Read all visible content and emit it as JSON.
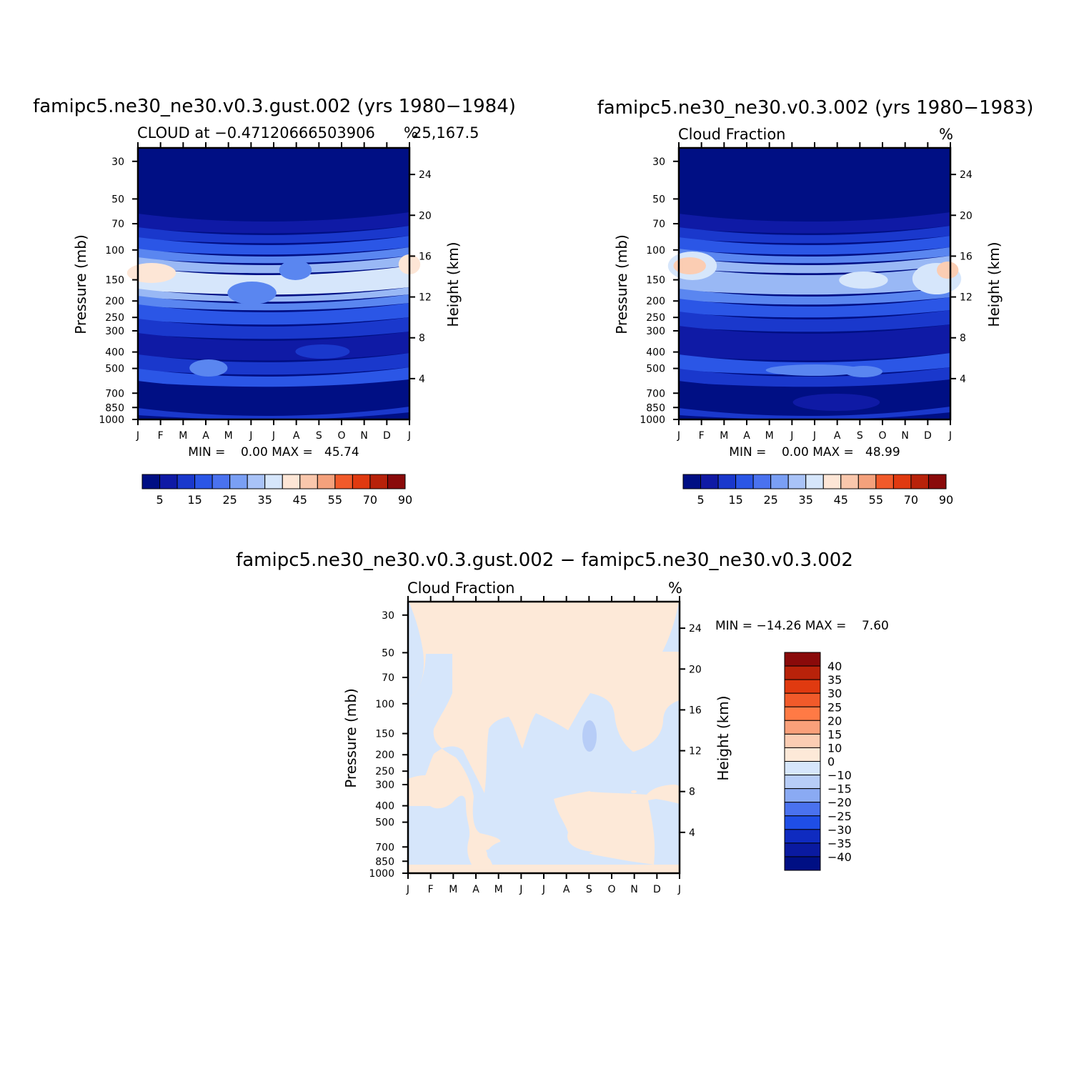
{
  "chart_data": [
    {
      "type": "contour",
      "title": "famipc5.ne30_ne30.v0.3.gust.002 (yrs 1980−1984)",
      "subtitle_left": "CLOUD at −0.47120666503906",
      "subtitle_right_units": "%",
      "subtitle_suffix": "25,167.5",
      "ylabel_left": "Pressure (mb)",
      "ylabel_right": "Height (km)",
      "x_ticks": [
        "J",
        "F",
        "M",
        "A",
        "M",
        "J",
        "J",
        "A",
        "S",
        "O",
        "N",
        "D",
        "J"
      ],
      "pressure_ticks": [
        30,
        50,
        70,
        100,
        150,
        200,
        250,
        300,
        400,
        500,
        700,
        850,
        1000
      ],
      "height_ticks": [
        24,
        20,
        16,
        12,
        8,
        4
      ],
      "stats": {
        "label": "MIN =    0.00 MAX =   45.74",
        "min": 0.0,
        "max": 45.74
      },
      "bands": [
        {
          "top": 303,
          "bottom": 322,
          "color": "#0f1aa5"
        },
        {
          "top": 322,
          "bottom": 336,
          "color": "#1a38cc"
        },
        {
          "top": 336,
          "bottom": 352,
          "color": "#2b56e6"
        },
        {
          "top": 352,
          "bottom": 364,
          "color": "#5a86f0"
        },
        {
          "top": 364,
          "bottom": 378,
          "color": "#99b8f5"
        },
        {
          "top": 378,
          "bottom": 408,
          "color": "#d6e6fb"
        },
        {
          "top": 408,
          "bottom": 418,
          "color": "#99b8f5"
        },
        {
          "top": 418,
          "bottom": 430,
          "color": "#5a86f0"
        },
        {
          "top": 430,
          "bottom": 450,
          "color": "#2b56e6"
        },
        {
          "top": 450,
          "bottom": 470,
          "color": "#1a38cc"
        },
        {
          "top": 470,
          "bottom": 500,
          "color": "#0f1aa5"
        },
        {
          "top": 500,
          "bottom": 520,
          "color": "#1a38cc"
        },
        {
          "top": 520,
          "bottom": 537,
          "color": "#2b56e6"
        },
        {
          "top": 537,
          "bottom": 575,
          "color": "#000f84"
        },
        {
          "top": 575,
          "bottom": 583,
          "color": "#1a38cc"
        }
      ],
      "blobs": [
        {
          "cx": 0.05,
          "cy": 382,
          "rx": 0.09,
          "ry": 14,
          "color": "#fde6d6"
        },
        {
          "cx": 1.0,
          "cy": 370,
          "rx": 0.04,
          "ry": 14,
          "color": "#fde6d6"
        },
        {
          "cx": 0.58,
          "cy": 378,
          "rx": 0.06,
          "ry": 14,
          "color": "#5a86f0"
        },
        {
          "cx": 0.42,
          "cy": 410,
          "rx": 0.09,
          "ry": 16,
          "color": "#5a86f0"
        },
        {
          "cx": 0.26,
          "cy": 515,
          "rx": 0.07,
          "ry": 12,
          "color": "#5a86f0"
        },
        {
          "cx": 0.68,
          "cy": 492,
          "rx": 0.1,
          "ry": 10,
          "color": "#1a38cc"
        }
      ],
      "colorbar": {
        "labels": [
          "5",
          "15",
          "25",
          "35",
          "45",
          "55",
          "70",
          "90"
        ],
        "colors": [
          "#000f84",
          "#0f1aa5",
          "#1a38cc",
          "#2b56e6",
          "#4a72ef",
          "#7a9ff4",
          "#a9c3f7",
          "#d6e6fb",
          "#fde6d6",
          "#f9c7ac",
          "#f4a17c",
          "#f15a2a",
          "#e03a10",
          "#b8220a",
          "#8a0a0a"
        ]
      }
    },
    {
      "type": "contour",
      "title": "famipc5.ne30_ne30.v0.3.002 (yrs 1980−1983)",
      "subtitle_left": "Cloud Fraction",
      "subtitle_right_units": "%",
      "ylabel_left": "Pressure (mb)",
      "ylabel_right": "Height (km)",
      "x_ticks": [
        "J",
        "F",
        "M",
        "A",
        "M",
        "J",
        "J",
        "A",
        "S",
        "O",
        "N",
        "D",
        "J"
      ],
      "pressure_ticks": [
        30,
        50,
        70,
        100,
        150,
        200,
        250,
        300,
        400,
        500,
        700,
        850,
        1000
      ],
      "height_ticks": [
        24,
        20,
        16,
        12,
        8,
        4
      ],
      "stats": {
        "label": "MIN =    0.00 MAX =   48.99",
        "min": 0.0,
        "max": 48.99
      },
      "bands": [
        {
          "top": 303,
          "bottom": 322,
          "color": "#0f1aa5"
        },
        {
          "top": 322,
          "bottom": 336,
          "color": "#1a38cc"
        },
        {
          "top": 336,
          "bottom": 352,
          "color": "#2b56e6"
        },
        {
          "top": 352,
          "bottom": 364,
          "color": "#5a86f0"
        },
        {
          "top": 364,
          "bottom": 378,
          "color": "#99b8f5"
        },
        {
          "top": 378,
          "bottom": 408,
          "color": "#99b8f5"
        },
        {
          "top": 408,
          "bottom": 422,
          "color": "#5a86f0"
        },
        {
          "top": 422,
          "bottom": 440,
          "color": "#2b56e6"
        },
        {
          "top": 440,
          "bottom": 460,
          "color": "#1a38cc"
        },
        {
          "top": 460,
          "bottom": 500,
          "color": "#0f1aa5"
        },
        {
          "top": 500,
          "bottom": 520,
          "color": "#2b56e6"
        },
        {
          "top": 520,
          "bottom": 537,
          "color": "#1a38cc"
        },
        {
          "top": 537,
          "bottom": 575,
          "color": "#000f84"
        },
        {
          "top": 575,
          "bottom": 583,
          "color": "#1a38cc"
        }
      ],
      "blobs": [
        {
          "cx": 0.05,
          "cy": 372,
          "rx": 0.09,
          "ry": 20,
          "color": "#d6e6fb"
        },
        {
          "cx": 0.04,
          "cy": 372,
          "rx": 0.06,
          "ry": 12,
          "color": "#fbcdb3"
        },
        {
          "cx": 0.95,
          "cy": 390,
          "rx": 0.09,
          "ry": 22,
          "color": "#d6e6fb"
        },
        {
          "cx": 0.99,
          "cy": 378,
          "rx": 0.04,
          "ry": 12,
          "color": "#fbcdb3"
        },
        {
          "cx": 0.68,
          "cy": 392,
          "rx": 0.09,
          "ry": 12,
          "color": "#d6e6fb"
        },
        {
          "cx": 0.5,
          "cy": 518,
          "rx": 0.18,
          "ry": 8,
          "color": "#5a86f0"
        },
        {
          "cx": 0.68,
          "cy": 520,
          "rx": 0.07,
          "ry": 8,
          "color": "#5a86f0"
        },
        {
          "cx": 0.58,
          "cy": 563,
          "rx": 0.16,
          "ry": 12,
          "color": "#0f1aa5"
        }
      ],
      "colorbar": {
        "labels": [
          "5",
          "15",
          "25",
          "35",
          "45",
          "55",
          "70",
          "90"
        ],
        "colors": [
          "#000f84",
          "#0f1aa5",
          "#1a38cc",
          "#2b56e6",
          "#4a72ef",
          "#7a9ff4",
          "#a9c3f7",
          "#d6e6fb",
          "#fde6d6",
          "#f9c7ac",
          "#f4a17c",
          "#f15a2a",
          "#e03a10",
          "#b8220a",
          "#8a0a0a"
        ]
      }
    },
    {
      "type": "contour",
      "title": "famipc5.ne30_ne30.v0.3.gust.002 − famipc5.ne30_ne30.v0.3.002",
      "subtitle_left": "Cloud Fraction",
      "subtitle_right_units": "%",
      "ylabel_left": "Pressure (mb)",
      "ylabel_right": "Height (km)",
      "x_ticks": [
        "J",
        "F",
        "M",
        "A",
        "M",
        "J",
        "J",
        "A",
        "S",
        "O",
        "N",
        "D",
        "J"
      ],
      "pressure_ticks": [
        30,
        50,
        70,
        100,
        150,
        200,
        250,
        300,
        400,
        500,
        700,
        850,
        1000
      ],
      "height_ticks": [
        24,
        20,
        16,
        12,
        8,
        4
      ],
      "stats": {
        "label": "MIN = −14.26 MAX =    7.60",
        "min": -14.26,
        "max": 7.6
      },
      "colorbar": {
        "labels": [
          "40",
          "35",
          "30",
          "25",
          "20",
          "15",
          "10",
          "0",
          "−10",
          "−15",
          "−20",
          "−25",
          "−30",
          "−35",
          "−40"
        ],
        "colors": [
          "#8a0a0a",
          "#b8220a",
          "#e03a10",
          "#f15a2a",
          "#ff7a45",
          "#f9a07a",
          "#fbcdb3",
          "#fde9d8",
          "#d6e6fb",
          "#b7cdf7",
          "#8aaaf3",
          "#4a72ef",
          "#1f4ee6",
          "#0f2bc0",
          "#0a1aa0",
          "#000f84"
        ]
      }
    }
  ]
}
